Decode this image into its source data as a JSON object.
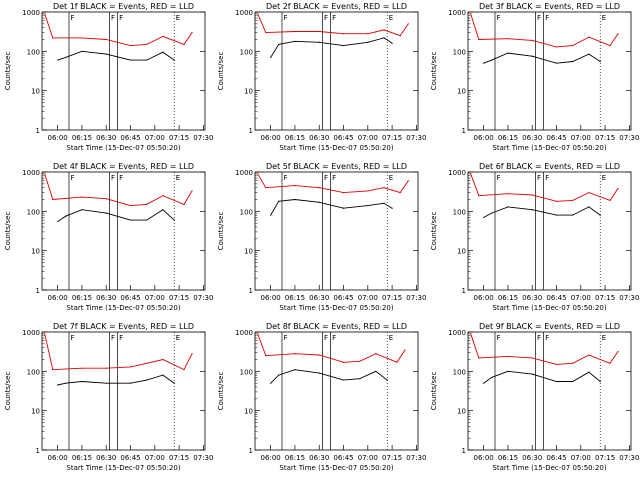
{
  "chart_data": [
    {
      "type": "line",
      "title": "Det 1f BLACK = Events, RED = LLD",
      "ylabel": "Counts/sec",
      "xlabel": "Start Time (15-Dec-07 05:50:20)",
      "ylim": [
        1,
        1000
      ],
      "yscale": "log",
      "xtick_labels": [
        "06:00",
        "06:15",
        "06:30",
        "06:45",
        "07:00",
        "07:15",
        "07:30"
      ],
      "ytick_labels": [
        "1",
        "10",
        "100",
        "1000"
      ],
      "series": [
        {
          "name": "Events",
          "color": "#000000",
          "values": [
            {
              "x": "06:00",
              "y": 60
            },
            {
              "x": "06:05",
              "y": 70
            },
            {
              "x": "06:15",
              "y": 100
            },
            {
              "x": "06:30",
              "y": 85
            },
            {
              "x": "06:45",
              "y": 60
            },
            {
              "x": "06:55",
              "y": 60
            },
            {
              "x": "07:05",
              "y": 95
            },
            {
              "x": "07:12",
              "y": 60
            }
          ]
        },
        {
          "name": "LLD",
          "color": "#e00000",
          "values": [
            {
              "x": "05:52",
              "y": 900
            },
            {
              "x": "05:57",
              "y": 220
            },
            {
              "x": "06:15",
              "y": 220
            },
            {
              "x": "06:30",
              "y": 200
            },
            {
              "x": "06:45",
              "y": 140
            },
            {
              "x": "06:55",
              "y": 150
            },
            {
              "x": "07:05",
              "y": 240
            },
            {
              "x": "07:18",
              "y": 150
            },
            {
              "x": "07:23",
              "y": 300
            }
          ]
        }
      ],
      "markers": [
        "F",
        "F",
        "F",
        "E"
      ]
    },
    {
      "type": "line",
      "title": "Det 2f BLACK = Events, RED = LLD",
      "ylabel": "Counts/sec",
      "xlabel": "Start Time (15-Dec-07 05:50:20)",
      "ylim": [
        1,
        1000
      ],
      "yscale": "log",
      "xtick_labels": [
        "06:00",
        "06:15",
        "06:30",
        "06:45",
        "07:00",
        "07:15",
        "07:30"
      ],
      "ytick_labels": [
        "1",
        "10",
        "100",
        "1000"
      ],
      "series": [
        {
          "name": "Events",
          "color": "#000000",
          "values": [
            {
              "x": "06:00",
              "y": 70
            },
            {
              "x": "06:05",
              "y": 150
            },
            {
              "x": "06:15",
              "y": 180
            },
            {
              "x": "06:30",
              "y": 170
            },
            {
              "x": "06:45",
              "y": 140
            },
            {
              "x": "07:00",
              "y": 170
            },
            {
              "x": "07:10",
              "y": 220
            },
            {
              "x": "07:15",
              "y": 160
            }
          ]
        },
        {
          "name": "LLD",
          "color": "#e00000",
          "values": [
            {
              "x": "05:52",
              "y": 900
            },
            {
              "x": "05:57",
              "y": 300
            },
            {
              "x": "06:15",
              "y": 320
            },
            {
              "x": "06:30",
              "y": 320
            },
            {
              "x": "06:45",
              "y": 280
            },
            {
              "x": "07:00",
              "y": 280
            },
            {
              "x": "07:10",
              "y": 350
            },
            {
              "x": "07:20",
              "y": 250
            },
            {
              "x": "07:25",
              "y": 500
            }
          ]
        }
      ],
      "markers": [
        "F",
        "F",
        "F",
        "E"
      ]
    },
    {
      "type": "line",
      "title": "Det 3f BLACK = Events, RED = LLD",
      "ylabel": "Counts/sec",
      "xlabel": "Start Time (15-Dec-07 05:50:20)",
      "ylim": [
        1,
        1000
      ],
      "yscale": "log",
      "xtick_labels": [
        "06:00",
        "06:15",
        "06:30",
        "06:45",
        "07:00",
        "07:15",
        "07:30"
      ],
      "ytick_labels": [
        "1",
        "10",
        "100",
        "1000"
      ],
      "series": [
        {
          "name": "Events",
          "color": "#000000",
          "values": [
            {
              "x": "06:00",
              "y": 50
            },
            {
              "x": "06:05",
              "y": 60
            },
            {
              "x": "06:15",
              "y": 90
            },
            {
              "x": "06:30",
              "y": 75
            },
            {
              "x": "06:45",
              "y": 50
            },
            {
              "x": "06:55",
              "y": 55
            },
            {
              "x": "07:05",
              "y": 85
            },
            {
              "x": "07:12",
              "y": 55
            }
          ]
        },
        {
          "name": "LLD",
          "color": "#e00000",
          "values": [
            {
              "x": "05:52",
              "y": 900
            },
            {
              "x": "05:57",
              "y": 200
            },
            {
              "x": "06:15",
              "y": 210
            },
            {
              "x": "06:30",
              "y": 190
            },
            {
              "x": "06:45",
              "y": 130
            },
            {
              "x": "06:55",
              "y": 140
            },
            {
              "x": "07:05",
              "y": 230
            },
            {
              "x": "07:18",
              "y": 140
            },
            {
              "x": "07:23",
              "y": 280
            }
          ]
        }
      ],
      "markers": [
        "F",
        "F",
        "F",
        "E"
      ]
    },
    {
      "type": "line",
      "title": "Det 4f BLACK = Events, RED = LLD",
      "ylabel": "Counts/sec",
      "xlabel": "Start Time (15-Dec-07 05:50:20)",
      "ylim": [
        1,
        1000
      ],
      "yscale": "log",
      "xtick_labels": [
        "06:00",
        "06:15",
        "06:30",
        "06:45",
        "07:00",
        "07:15",
        "07:30"
      ],
      "ytick_labels": [
        "1",
        "10",
        "100",
        "1000"
      ],
      "series": [
        {
          "name": "Events",
          "color": "#000000",
          "values": [
            {
              "x": "06:00",
              "y": 55
            },
            {
              "x": "06:05",
              "y": 75
            },
            {
              "x": "06:15",
              "y": 110
            },
            {
              "x": "06:30",
              "y": 90
            },
            {
              "x": "06:45",
              "y": 60
            },
            {
              "x": "06:55",
              "y": 60
            },
            {
              "x": "07:05",
              "y": 110
            },
            {
              "x": "07:12",
              "y": 60
            }
          ]
        },
        {
          "name": "LLD",
          "color": "#e00000",
          "values": [
            {
              "x": "05:52",
              "y": 900
            },
            {
              "x": "05:57",
              "y": 200
            },
            {
              "x": "06:15",
              "y": 230
            },
            {
              "x": "06:30",
              "y": 210
            },
            {
              "x": "06:45",
              "y": 140
            },
            {
              "x": "06:55",
              "y": 150
            },
            {
              "x": "07:05",
              "y": 250
            },
            {
              "x": "07:18",
              "y": 150
            },
            {
              "x": "07:23",
              "y": 330
            }
          ]
        }
      ],
      "markers": [
        "F",
        "F",
        "F",
        "E"
      ]
    },
    {
      "type": "line",
      "title": "Det 5f BLACK = Events, RED = LLD",
      "ylabel": "Counts/sec",
      "xlabel": "Start Time (15-Dec-07 05:50:20)",
      "ylim": [
        1,
        1000
      ],
      "yscale": "log",
      "xtick_labels": [
        "06:00",
        "06:15",
        "06:30",
        "06:45",
        "07:00",
        "07:15",
        "07:30"
      ],
      "ytick_labels": [
        "1",
        "10",
        "100",
        "1000"
      ],
      "series": [
        {
          "name": "Events",
          "color": "#000000",
          "values": [
            {
              "x": "06:00",
              "y": 80
            },
            {
              "x": "06:05",
              "y": 180
            },
            {
              "x": "06:15",
              "y": 200
            },
            {
              "x": "06:30",
              "y": 170
            },
            {
              "x": "06:45",
              "y": 120
            },
            {
              "x": "07:00",
              "y": 140
            },
            {
              "x": "07:10",
              "y": 160
            },
            {
              "x": "07:15",
              "y": 120
            }
          ]
        },
        {
          "name": "LLD",
          "color": "#e00000",
          "values": [
            {
              "x": "05:52",
              "y": 900
            },
            {
              "x": "05:57",
              "y": 400
            },
            {
              "x": "06:15",
              "y": 450
            },
            {
              "x": "06:30",
              "y": 400
            },
            {
              "x": "06:45",
              "y": 300
            },
            {
              "x": "07:00",
              "y": 330
            },
            {
              "x": "07:10",
              "y": 400
            },
            {
              "x": "07:20",
              "y": 300
            },
            {
              "x": "07:25",
              "y": 600
            }
          ]
        }
      ],
      "markers": [
        "F",
        "F",
        "F",
        "E"
      ]
    },
    {
      "type": "line",
      "title": "Det 6f BLACK = Events, RED = LLD",
      "ylabel": "Counts/sec",
      "xlabel": "Start Time (15-Dec-07 05:50:20)",
      "ylim": [
        1,
        1000
      ],
      "yscale": "log",
      "xtick_labels": [
        "06:00",
        "06:15",
        "06:30",
        "06:45",
        "07:00",
        "07:15",
        "07:30"
      ],
      "ytick_labels": [
        "1",
        "10",
        "100",
        "1000"
      ],
      "series": [
        {
          "name": "Events",
          "color": "#000000",
          "values": [
            {
              "x": "06:00",
              "y": 70
            },
            {
              "x": "06:05",
              "y": 90
            },
            {
              "x": "06:15",
              "y": 130
            },
            {
              "x": "06:30",
              "y": 110
            },
            {
              "x": "06:45",
              "y": 80
            },
            {
              "x": "06:55",
              "y": 80
            },
            {
              "x": "07:05",
              "y": 130
            },
            {
              "x": "07:12",
              "y": 80
            }
          ]
        },
        {
          "name": "LLD",
          "color": "#e00000",
          "values": [
            {
              "x": "05:52",
              "y": 900
            },
            {
              "x": "05:57",
              "y": 250
            },
            {
              "x": "06:15",
              "y": 280
            },
            {
              "x": "06:30",
              "y": 260
            },
            {
              "x": "06:45",
              "y": 180
            },
            {
              "x": "06:55",
              "y": 190
            },
            {
              "x": "07:05",
              "y": 300
            },
            {
              "x": "07:18",
              "y": 190
            },
            {
              "x": "07:23",
              "y": 380
            }
          ]
        }
      ],
      "markers": [
        "F",
        "F",
        "F",
        "E"
      ]
    },
    {
      "type": "line",
      "title": "Det 7f BLACK = Events, RED = LLD",
      "ylabel": "Counts/sec",
      "xlabel": "Start Time (15-Dec-07 05:50:20)",
      "ylim": [
        1,
        1000
      ],
      "yscale": "log",
      "xtick_labels": [
        "06:00",
        "06:15",
        "06:30",
        "06:45",
        "07:00",
        "07:15",
        "07:30"
      ],
      "ytick_labels": [
        "1",
        "10",
        "100",
        "1000"
      ],
      "series": [
        {
          "name": "Events",
          "color": "#000000",
          "values": [
            {
              "x": "06:00",
              "y": 45
            },
            {
              "x": "06:05",
              "y": 50
            },
            {
              "x": "06:15",
              "y": 55
            },
            {
              "x": "06:30",
              "y": 50
            },
            {
              "x": "06:45",
              "y": 50
            },
            {
              "x": "06:55",
              "y": 60
            },
            {
              "x": "07:05",
              "y": 80
            },
            {
              "x": "07:12",
              "y": 50
            }
          ]
        },
        {
          "name": "LLD",
          "color": "#e00000",
          "values": [
            {
              "x": "05:52",
              "y": 900
            },
            {
              "x": "05:57",
              "y": 110
            },
            {
              "x": "06:15",
              "y": 120
            },
            {
              "x": "06:30",
              "y": 120
            },
            {
              "x": "06:45",
              "y": 130
            },
            {
              "x": "06:55",
              "y": 160
            },
            {
              "x": "07:05",
              "y": 200
            },
            {
              "x": "07:18",
              "y": 110
            },
            {
              "x": "07:23",
              "y": 280
            }
          ]
        }
      ],
      "markers": [
        "F",
        "F",
        "F",
        "E"
      ]
    },
    {
      "type": "line",
      "title": "Det 8f BLACK = Events, RED = LLD",
      "ylabel": "Counts/sec",
      "xlabel": "Start Time (15-Dec-07 05:50:20)",
      "ylim": [
        1,
        1000
      ],
      "yscale": "log",
      "xtick_labels": [
        "06:00",
        "06:15",
        "06:30",
        "06:45",
        "07:00",
        "07:15",
        "07:30"
      ],
      "ytick_labels": [
        "1",
        "10",
        "100",
        "1000"
      ],
      "series": [
        {
          "name": "Events",
          "color": "#000000",
          "values": [
            {
              "x": "06:00",
              "y": 50
            },
            {
              "x": "06:05",
              "y": 80
            },
            {
              "x": "06:15",
              "y": 110
            },
            {
              "x": "06:30",
              "y": 90
            },
            {
              "x": "06:45",
              "y": 60
            },
            {
              "x": "06:55",
              "y": 65
            },
            {
              "x": "07:05",
              "y": 100
            },
            {
              "x": "07:12",
              "y": 60
            }
          ]
        },
        {
          "name": "LLD",
          "color": "#e00000",
          "values": [
            {
              "x": "05:52",
              "y": 900
            },
            {
              "x": "05:57",
              "y": 250
            },
            {
              "x": "06:15",
              "y": 280
            },
            {
              "x": "06:30",
              "y": 260
            },
            {
              "x": "06:45",
              "y": 170
            },
            {
              "x": "06:55",
              "y": 180
            },
            {
              "x": "07:05",
              "y": 280
            },
            {
              "x": "07:18",
              "y": 170
            },
            {
              "x": "07:23",
              "y": 350
            }
          ]
        }
      ],
      "markers": [
        "F",
        "F",
        "F",
        "E"
      ]
    },
    {
      "type": "line",
      "title": "Det 9f BLACK = Events, RED = LLD",
      "ylabel": "Counts/sec",
      "xlabel": "Start Time (15-Dec-07 05:50:20)",
      "ylim": [
        1,
        1000
      ],
      "yscale": "log",
      "xtick_labels": [
        "06:00",
        "06:15",
        "06:30",
        "06:45",
        "07:00",
        "07:15",
        "07:30"
      ],
      "ytick_labels": [
        "1",
        "10",
        "100",
        "1000"
      ],
      "series": [
        {
          "name": "Events",
          "color": "#000000",
          "values": [
            {
              "x": "06:00",
              "y": 50
            },
            {
              "x": "06:05",
              "y": 70
            },
            {
              "x": "06:15",
              "y": 100
            },
            {
              "x": "06:30",
              "y": 85
            },
            {
              "x": "06:45",
              "y": 55
            },
            {
              "x": "06:55",
              "y": 55
            },
            {
              "x": "07:05",
              "y": 95
            },
            {
              "x": "07:12",
              "y": 55
            }
          ]
        },
        {
          "name": "LLD",
          "color": "#e00000",
          "values": [
            {
              "x": "05:52",
              "y": 900
            },
            {
              "x": "05:57",
              "y": 220
            },
            {
              "x": "06:15",
              "y": 240
            },
            {
              "x": "06:30",
              "y": 220
            },
            {
              "x": "06:45",
              "y": 150
            },
            {
              "x": "06:55",
              "y": 160
            },
            {
              "x": "07:05",
              "y": 260
            },
            {
              "x": "07:18",
              "y": 160
            },
            {
              "x": "07:23",
              "y": 320
            }
          ]
        }
      ],
      "markers": [
        "F",
        "F",
        "F",
        "E"
      ]
    }
  ]
}
